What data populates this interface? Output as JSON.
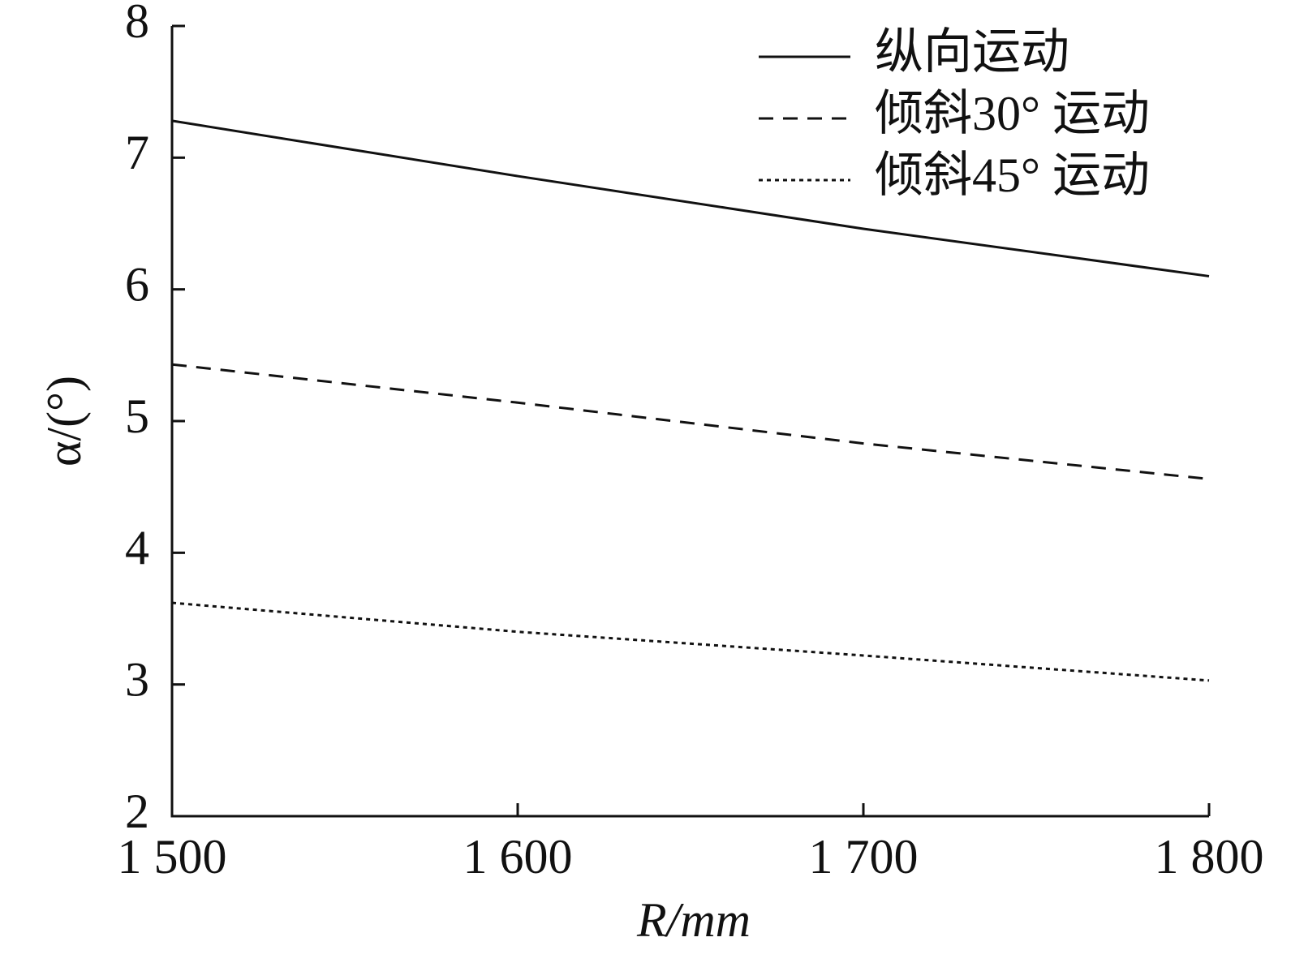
{
  "chart_data": {
    "type": "line",
    "x_label": "R/mm",
    "y_label": "α/(°)",
    "x": [
      1500,
      1600,
      1700,
      1800
    ],
    "xlim": [
      1500,
      1800
    ],
    "xticks": [
      {
        "value": 1500,
        "label": "1 500"
      },
      {
        "value": 1600,
        "label": "1 600"
      },
      {
        "value": 1700,
        "label": "1 700"
      },
      {
        "value": 1800,
        "label": "1 800"
      }
    ],
    "ylim": [
      2,
      8
    ],
    "yticks": [
      2,
      3,
      4,
      5,
      6,
      7,
      8
    ],
    "grid": false,
    "legend": "upper right",
    "series": [
      {
        "name": "纵向运动",
        "color": "#111111",
        "dash": "solid",
        "values": [
          7.28,
          6.86,
          6.46,
          6.1
        ]
      },
      {
        "name": "倾斜30° 运动",
        "color": "#111111",
        "dash": "dashed",
        "values": [
          5.43,
          5.14,
          4.83,
          4.56
        ]
      },
      {
        "name": "倾斜45° 运动",
        "color": "#111111",
        "dash": "dotted",
        "values": [
          3.62,
          3.4,
          3.22,
          3.03
        ]
      }
    ]
  }
}
